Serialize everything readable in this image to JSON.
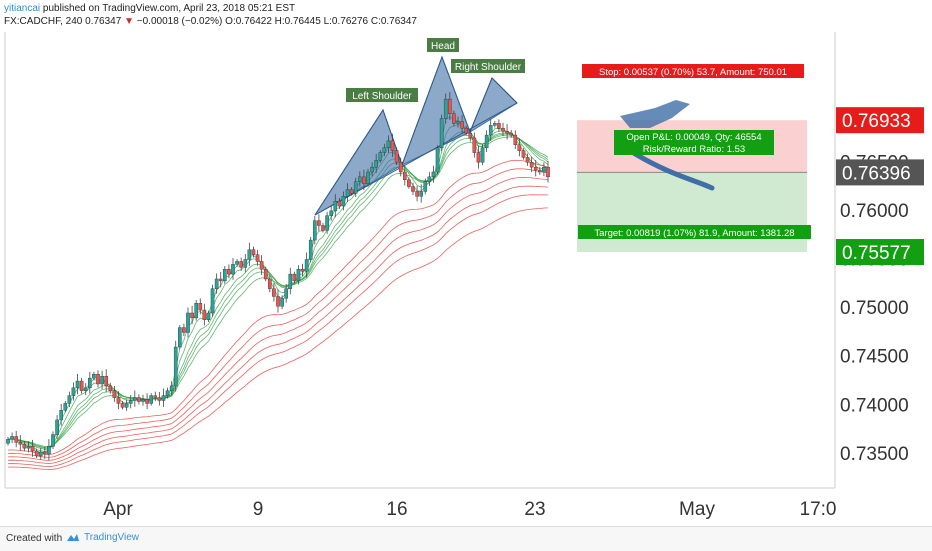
{
  "header": {
    "author": "yitiancai",
    "published": " published on TradingView.com, April 23, 2018 05:21 EST",
    "symbol": "FX:CADCHF, 240",
    "last": "0.76347",
    "change": "−0.00018 (−0.02%)",
    "ohlc": "O:0.76422 H:0.76445 L:0.76276 C:0.76347"
  },
  "footer": {
    "created": "Created with",
    "brand": "TradingView"
  },
  "colors": {
    "bull": "#26a69a",
    "bear": "#ef5350",
    "pattern": "#3f6fa6",
    "green_ma": "#2e9e40",
    "red_ma": "#e53935",
    "stop_zone": "#fbd0d0",
    "target_zone": "#cfead0",
    "stop_label": "#e81b1b",
    "target_label": "#12a012",
    "price_label": "#555555"
  },
  "chart_data": {
    "type": "candlestick",
    "y_axis": {
      "ticks": [
        "0.73500",
        "0.74000",
        "0.74500",
        "0.75000",
        "0.75500",
        "0.76000",
        "0.76500"
      ],
      "range": [
        0.7315,
        0.7784
      ]
    },
    "x_axis": {
      "ticks": [
        "Apr",
        "9",
        "16",
        "23",
        "May",
        "17:0"
      ]
    },
    "price_labels": {
      "stop": "0.76933",
      "current": "0.76396",
      "target": "0.75577"
    },
    "candles_close": [
      0.7365,
      0.7368,
      0.7362,
      0.736,
      0.7356,
      0.7358,
      0.7353,
      0.7348,
      0.7352,
      0.735,
      0.7358,
      0.737,
      0.7385,
      0.7395,
      0.7402,
      0.741,
      0.7418,
      0.7425,
      0.7415,
      0.7418,
      0.7428,
      0.7432,
      0.7422,
      0.743,
      0.742,
      0.7415,
      0.7408,
      0.7402,
      0.7398,
      0.7402,
      0.7405,
      0.7408,
      0.7404,
      0.7406,
      0.7402,
      0.741,
      0.7408,
      0.7405,
      0.741,
      0.7415,
      0.742,
      0.746,
      0.748,
      0.7475,
      0.7495,
      0.749,
      0.7505,
      0.7498,
      0.7488,
      0.7495,
      0.752,
      0.753,
      0.7528,
      0.754,
      0.7535,
      0.7545,
      0.7548,
      0.7542,
      0.755,
      0.756,
      0.7555,
      0.7548,
      0.754,
      0.753,
      0.752,
      0.7512,
      0.7502,
      0.751,
      0.752,
      0.7535,
      0.7528,
      0.754,
      0.7538,
      0.755,
      0.757,
      0.759,
      0.7585,
      0.758,
      0.7595,
      0.76,
      0.761,
      0.7605,
      0.7615,
      0.7622,
      0.7618,
      0.763,
      0.7635,
      0.7628,
      0.764,
      0.7645,
      0.7652,
      0.766,
      0.7665,
      0.7672,
      0.7662,
      0.765,
      0.764,
      0.7632,
      0.7625,
      0.762,
      0.7615,
      0.762,
      0.763,
      0.7635,
      0.764,
      0.7665,
      0.7695,
      0.7715,
      0.77,
      0.769,
      0.7692,
      0.7685,
      0.768,
      0.7675,
      0.766,
      0.765,
      0.7665,
      0.7678,
      0.7688,
      0.769,
      0.7685,
      0.7682,
      0.768,
      0.7678,
      0.7668,
      0.7662,
      0.7655,
      0.765,
      0.7645,
      0.7642,
      0.764,
      0.7645,
      0.7635
    ],
    "annotations": {
      "left_shoulder": "Left Shoulder",
      "head": "Head",
      "right_shoulder": "Right Shoulder"
    },
    "position_labels": {
      "stop": "Stop: 0.00537 (0.70%) 53.7, Amount: 750.01",
      "pnl": "Open P&L: 0.00049, Qty: 46554",
      "rr": "Risk/Reward Ratio: 1.53",
      "target": "Target: 0.00819 (1.07%) 81.9, Amount: 1381.28"
    }
  }
}
